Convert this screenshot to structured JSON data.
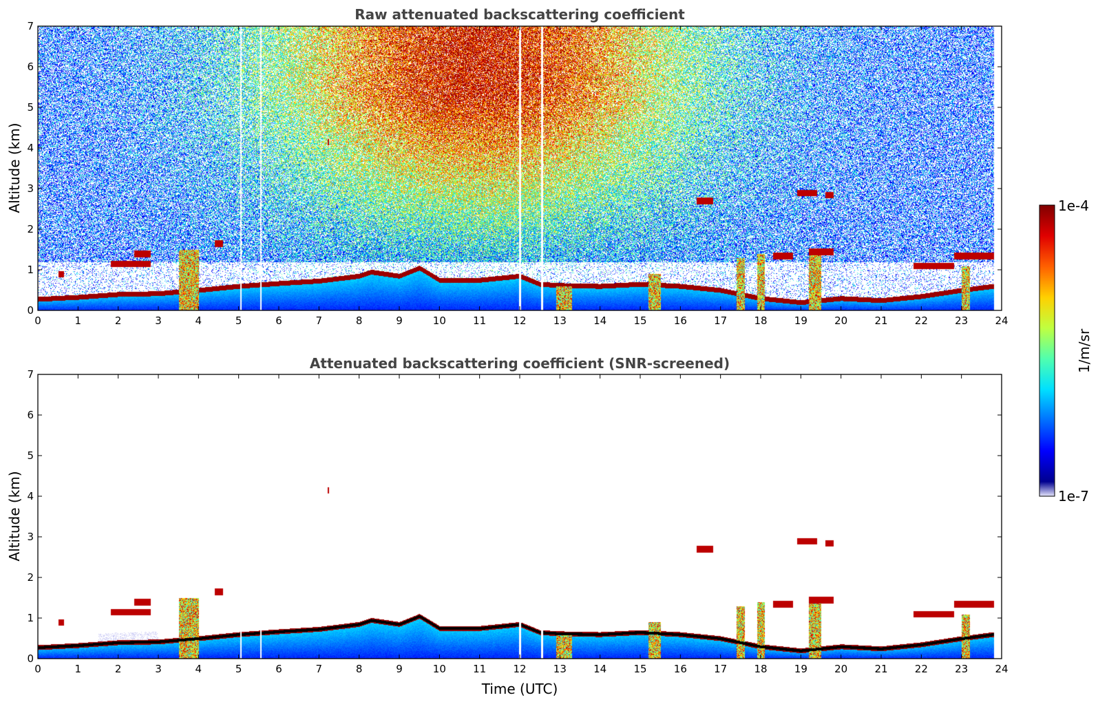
{
  "colors": {
    "colormap": [
      "#00008f",
      "#0000ff",
      "#0070ff",
      "#00e0ff",
      "#50ffaf",
      "#c0ff40",
      "#ffd000",
      "#ff6000",
      "#e00000",
      "#800000"
    ],
    "screened_low": [
      "#e6e6fb",
      "#a8a8f0",
      "#7070e8",
      "#3c3cf0"
    ],
    "title_text": "#444444",
    "frame": "#000000"
  },
  "chart_data": [
    {
      "type": "heatmap",
      "title": "Raw attenuated backscattering coefficient",
      "ylabel": "Altitude (km)",
      "xlabel": "",
      "xlim": [
        0,
        24
      ],
      "ylim": [
        0,
        7
      ],
      "x_ticks": [
        "0",
        "1",
        "2",
        "3",
        "4",
        "5",
        "6",
        "7",
        "8",
        "9",
        "10",
        "11",
        "12",
        "13",
        "14",
        "15",
        "16",
        "17",
        "18",
        "19",
        "20",
        "21",
        "22",
        "23",
        "24"
      ],
      "y_ticks": [
        "0",
        "1",
        "2",
        "3",
        "4",
        "5",
        "6",
        "7"
      ],
      "boundary_layer_top_km": [
        [
          0,
          0.28
        ],
        [
          1,
          0.33
        ],
        [
          2,
          0.4
        ],
        [
          3,
          0.42
        ],
        [
          4,
          0.5
        ],
        [
          5,
          0.6
        ],
        [
          6,
          0.67
        ],
        [
          7,
          0.73
        ],
        [
          8,
          0.85
        ],
        [
          8.3,
          0.95
        ],
        [
          9,
          0.85
        ],
        [
          9.5,
          1.05
        ],
        [
          10,
          0.75
        ],
        [
          11,
          0.75
        ],
        [
          12,
          0.85
        ],
        [
          12.5,
          0.65
        ],
        [
          13,
          0.62
        ],
        [
          14,
          0.6
        ],
        [
          15,
          0.65
        ],
        [
          16,
          0.6
        ],
        [
          17,
          0.5
        ],
        [
          18,
          0.3
        ],
        [
          19,
          0.2
        ],
        [
          20,
          0.3
        ],
        [
          21,
          0.25
        ],
        [
          22,
          0.35
        ],
        [
          23,
          0.5
        ],
        [
          23.8,
          0.6
        ]
      ],
      "cloud_layers": [
        {
          "x": [
            0.5,
            0.65
          ],
          "alt": 0.9
        },
        {
          "x": [
            1.8,
            2.8
          ],
          "alt": 1.15
        },
        {
          "x": [
            2.4,
            2.8
          ],
          "alt": 1.4
        },
        {
          "x": [
            4.4,
            4.6
          ],
          "alt": 1.65
        },
        {
          "x": [
            7.2,
            7.25
          ],
          "alt": 4.15
        },
        {
          "x": [
            16.4,
            16.8
          ],
          "alt": 2.7
        },
        {
          "x": [
            18.9,
            19.4
          ],
          "alt": 2.9
        },
        {
          "x": [
            19.6,
            19.8
          ],
          "alt": 2.85
        },
        {
          "x": [
            18.3,
            18.8
          ],
          "alt": 1.35
        },
        {
          "x": [
            19.2,
            19.8
          ],
          "alt": 1.45
        },
        {
          "x": [
            22.8,
            23.8
          ],
          "alt": 1.35
        },
        {
          "x": [
            21.8,
            22.8
          ],
          "alt": 1.1
        }
      ],
      "vertical_features": [
        {
          "x": [
            3.5,
            4.0
          ],
          "top": 1.5
        },
        {
          "x": [
            17.4,
            17.6
          ],
          "top": 1.3
        },
        {
          "x": [
            17.9,
            18.1
          ],
          "top": 1.4
        },
        {
          "x": [
            19.2,
            19.5
          ],
          "top": 1.4
        },
        {
          "x": [
            12.9,
            13.3
          ],
          "top": 0.6
        },
        {
          "x": [
            15.2,
            15.5
          ],
          "top": 0.9
        },
        {
          "x": [
            23.0,
            23.2
          ],
          "top": 1.1
        }
      ]
    },
    {
      "type": "heatmap",
      "title": "Attenuated backscattering coefficient (SNR-screened)",
      "ylabel": "Altitude (km)",
      "xlabel": "Time (UTC)",
      "xlim": [
        0,
        24
      ],
      "ylim": [
        0,
        7
      ],
      "x_ticks": [
        "0",
        "1",
        "2",
        "3",
        "4",
        "5",
        "6",
        "7",
        "8",
        "9",
        "10",
        "11",
        "12",
        "13",
        "14",
        "15",
        "16",
        "17",
        "18",
        "19",
        "20",
        "21",
        "22",
        "23",
        "24"
      ],
      "y_ticks": [
        "0",
        "1",
        "2",
        "3",
        "4",
        "5",
        "6",
        "7"
      ]
    }
  ],
  "colorbar": {
    "label": "1/m/sr",
    "max_label": "1e-4",
    "min_label": "1e-7",
    "scale": "log",
    "range": [
      1e-07,
      0.0001
    ]
  }
}
